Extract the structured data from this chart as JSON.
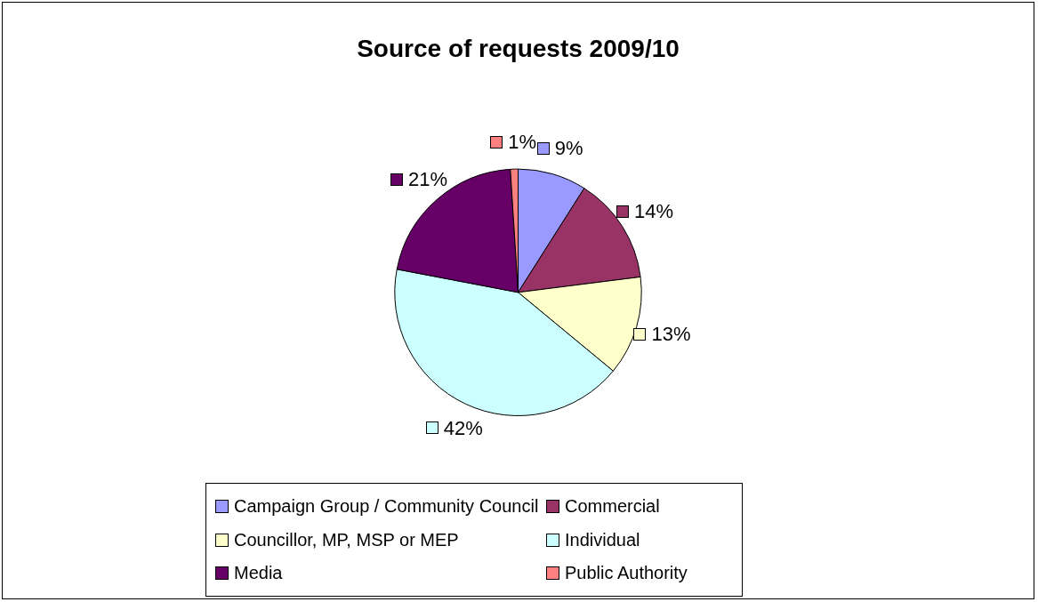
{
  "chart_data": {
    "type": "pie",
    "title": "Source of requests 2009/10",
    "categories": [
      "Campaign Group / Community Council",
      "Commercial",
      "Councillor, MP, MSP or MEP",
      "Individual",
      "Media",
      "Public Authority"
    ],
    "values": [
      9,
      14,
      13,
      42,
      21,
      1
    ],
    "colors": [
      "#9999ff",
      "#993366",
      "#ffffcc",
      "#ccffff",
      "#660066",
      "#ff8080"
    ],
    "value_labels": [
      "9%",
      "14%",
      "13%",
      "42%",
      "21%",
      "1%"
    ],
    "legend": "bottom"
  }
}
